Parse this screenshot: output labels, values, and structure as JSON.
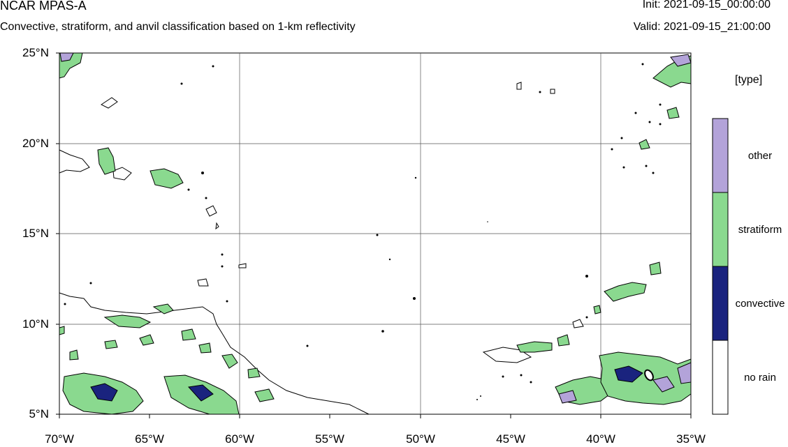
{
  "header": {
    "title": "NCAR MPAS-A",
    "subtitle": "Convective, stratiform, and anvil classification based on 1-km reflectivity",
    "init": "Init: 2021-09-15_00:00:00",
    "valid": "Valid: 2021-09-15_21:00:00"
  },
  "axes": {
    "lat_ticks": [
      "25°N",
      "20°N",
      "15°N",
      "10°N",
      "5°N"
    ],
    "lon_ticks": [
      "70°W",
      "65°W",
      "60°W",
      "55°W",
      "50°W",
      "45°W",
      "40°W",
      "35°W"
    ],
    "lat_range": [
      5,
      25
    ],
    "lon_range": [
      -70,
      -35
    ],
    "grid": true
  },
  "legend": {
    "title": "[type]",
    "entries": [
      {
        "label": "other",
        "color": "#b3a3d9"
      },
      {
        "label": "stratiform",
        "color": "#8ad98f"
      },
      {
        "label": "convective",
        "color": "#1a237e"
      },
      {
        "label": "no rain",
        "color": "#ffffff"
      }
    ]
  }
}
